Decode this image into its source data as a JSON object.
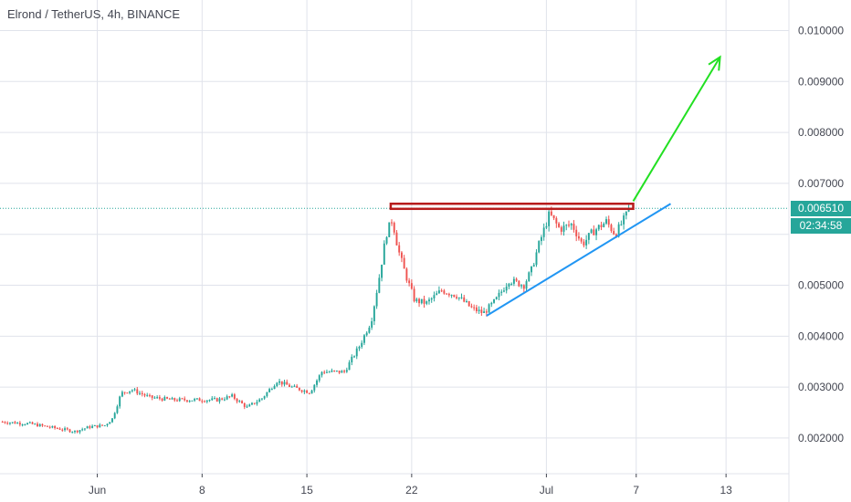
{
  "chart_title": "Elrond / TetherUS, 4h, BINANCE",
  "price_tag": "0.006510",
  "timer": "02:34:58",
  "colors": {
    "up": "#26a69a",
    "down": "#ef5350",
    "resistance": "#b71c1c",
    "trendline": "#2196f3",
    "arrow": "#22e022",
    "grid": "#e0e3eb",
    "text": "#434651"
  },
  "chart_data": {
    "type": "candlestick",
    "x_tick_labels": [
      "Jun",
      "8",
      "15",
      "22",
      "Jul",
      "7",
      "13"
    ],
    "x_tick_days": [
      1,
      8,
      15,
      22,
      31,
      37,
      43
    ],
    "y_tick_labels": [
      "0.010000",
      "0.009000",
      "0.008000",
      "0.007000",
      "0.005000",
      "0.004000",
      "0.003000",
      "0.002000"
    ],
    "y_tick_values": [
      0.01,
      0.009,
      0.008,
      0.007,
      0.005,
      0.004,
      0.003,
      0.002
    ],
    "ylim": [
      0.0013,
      0.0106
    ],
    "xlim": [
      -5.5,
      47.2
    ],
    "last_price": 0.00651,
    "price_anchors": [
      [
        -5.5,
        0.00232
      ],
      [
        -3.5,
        0.00228
      ],
      [
        -1.5,
        0.00218
      ],
      [
        -0.5,
        0.00213
      ],
      [
        0.5,
        0.00222
      ],
      [
        1.5,
        0.00225
      ],
      [
        2,
        0.00238
      ],
      [
        2.6,
        0.00288
      ],
      [
        3.3,
        0.00295
      ],
      [
        4.5,
        0.0028
      ],
      [
        6,
        0.00275
      ],
      [
        8,
        0.00275
      ],
      [
        9,
        0.00275
      ],
      [
        10,
        0.00282
      ],
      [
        11,
        0.0026
      ],
      [
        12,
        0.00278
      ],
      [
        13,
        0.00312
      ],
      [
        14,
        0.003
      ],
      [
        15.2,
        0.0029
      ],
      [
        16,
        0.0033
      ],
      [
        17.5,
        0.0033
      ],
      [
        18.5,
        0.0038
      ],
      [
        19.3,
        0.0043
      ],
      [
        19.8,
        0.0051
      ],
      [
        20.3,
        0.006
      ],
      [
        20.7,
        0.0063
      ],
      [
        21.1,
        0.0057
      ],
      [
        21.6,
        0.0052
      ],
      [
        22.2,
        0.0047
      ],
      [
        23,
        0.00465
      ],
      [
        24,
        0.0049
      ],
      [
        25,
        0.0048
      ],
      [
        26,
        0.00455
      ],
      [
        26.8,
        0.00445
      ],
      [
        27.6,
        0.0047
      ],
      [
        28.5,
        0.0051
      ],
      [
        29.5,
        0.005
      ],
      [
        30,
        0.0053
      ],
      [
        30.5,
        0.0058
      ],
      [
        31.2,
        0.0064
      ],
      [
        31.9,
        0.0061
      ],
      [
        32.7,
        0.0062
      ],
      [
        33.4,
        0.0058
      ],
      [
        34.1,
        0.00605
      ],
      [
        35,
        0.00625
      ],
      [
        35.6,
        0.006
      ],
      [
        36.2,
        0.0063
      ],
      [
        36.6,
        0.00651
      ]
    ],
    "annotations": {
      "resistance_box": {
        "x1": 20.6,
        "x2": 36.8,
        "y1": 0.0065,
        "y2": 0.0066
      },
      "trendline": {
        "x1": 27.0,
        "y1": 0.0044,
        "x2": 39.3,
        "y2": 0.0066
      },
      "arrow": {
        "x1": 36.8,
        "y1": 0.00665,
        "x2": 42.6,
        "y2": 0.00948
      }
    }
  }
}
